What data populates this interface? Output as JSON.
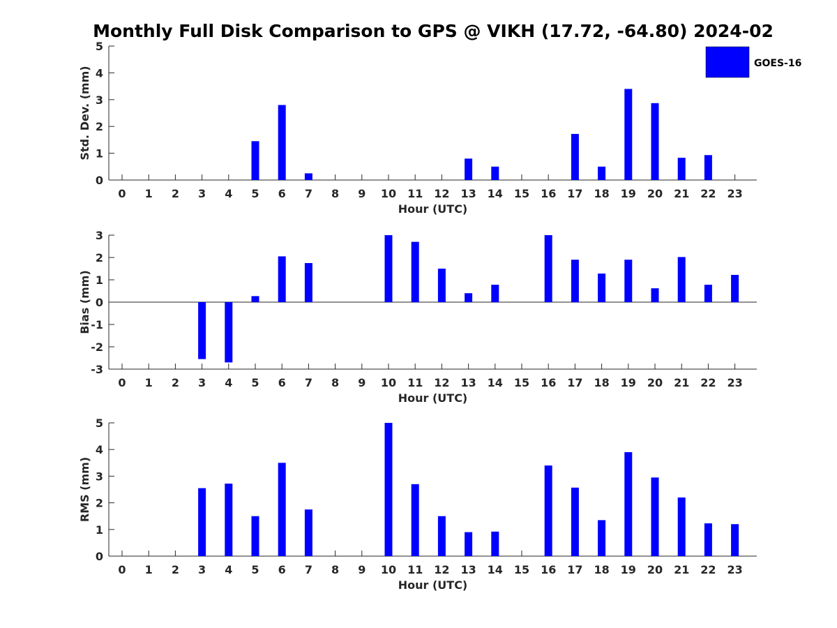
{
  "title": "Monthly Full Disk Comparison to GPS @ VIKH (17.72, -64.80) 2024-02",
  "legend": {
    "label": "GOES-16",
    "color": "#0000ff",
    "placement": "top-right"
  },
  "chart_data": [
    {
      "type": "bar",
      "categories": [
        "0",
        "1",
        "2",
        "3",
        "4",
        "5",
        "6",
        "7",
        "8",
        "9",
        "10",
        "11",
        "12",
        "13",
        "14",
        "15",
        "16",
        "17",
        "18",
        "19",
        "20",
        "21",
        "22",
        "23"
      ],
      "series": [
        {
          "name": "GOES-16",
          "values": [
            null,
            null,
            null,
            null,
            null,
            1.45,
            2.8,
            0.25,
            null,
            null,
            null,
            null,
            null,
            0.8,
            0.5,
            null,
            null,
            1.72,
            0.5,
            3.4,
            2.87,
            0.83,
            0.93,
            null
          ]
        }
      ],
      "xlabel": "Hour (UTC)",
      "ylabel": "Std. Dev. (mm)",
      "ylim": [
        0,
        5
      ],
      "yticks": [
        "0",
        "1",
        "2",
        "3",
        "4",
        "5"
      ],
      "grid": false
    },
    {
      "type": "bar",
      "categories": [
        "0",
        "1",
        "2",
        "3",
        "4",
        "5",
        "6",
        "7",
        "8",
        "9",
        "10",
        "11",
        "12",
        "13",
        "14",
        "15",
        "16",
        "17",
        "18",
        "19",
        "20",
        "21",
        "22",
        "23"
      ],
      "series": [
        {
          "name": "GOES-16",
          "values": [
            null,
            null,
            null,
            -2.55,
            -2.7,
            0.27,
            2.05,
            1.75,
            null,
            null,
            3.0,
            2.7,
            1.5,
            0.4,
            0.78,
            null,
            3.0,
            1.9,
            1.28,
            1.9,
            0.62,
            2.02,
            0.78,
            1.22
          ]
        }
      ],
      "xlabel": "Hour (UTC)",
      "ylabel": "Bias (mm)",
      "ylim": [
        -3,
        3
      ],
      "yticks": [
        "-3",
        "-2",
        "-1",
        "0",
        "1",
        "2",
        "3"
      ],
      "grid": false
    },
    {
      "type": "bar",
      "categories": [
        "0",
        "1",
        "2",
        "3",
        "4",
        "5",
        "6",
        "7",
        "8",
        "9",
        "10",
        "11",
        "12",
        "13",
        "14",
        "15",
        "16",
        "17",
        "18",
        "19",
        "20",
        "21",
        "22",
        "23"
      ],
      "series": [
        {
          "name": "GOES-16",
          "values": [
            null,
            null,
            null,
            2.55,
            2.72,
            1.5,
            3.5,
            1.75,
            null,
            null,
            5.0,
            2.7,
            1.5,
            0.9,
            0.92,
            null,
            3.4,
            2.57,
            1.35,
            3.9,
            2.95,
            2.2,
            1.23,
            1.2
          ]
        }
      ],
      "xlabel": "Hour (UTC)",
      "ylabel": "RMS (mm)",
      "ylim": [
        0,
        5
      ],
      "yticks": [
        "0",
        "1",
        "2",
        "3",
        "4",
        "5"
      ],
      "grid": false
    }
  ]
}
